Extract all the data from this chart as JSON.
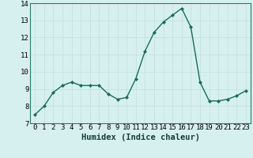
{
  "x": [
    0,
    1,
    2,
    3,
    4,
    5,
    6,
    7,
    8,
    9,
    10,
    11,
    12,
    13,
    14,
    15,
    16,
    17,
    18,
    19,
    20,
    21,
    22,
    23
  ],
  "y": [
    7.5,
    8.0,
    8.8,
    9.2,
    9.4,
    9.2,
    9.2,
    9.2,
    8.7,
    8.4,
    8.5,
    9.6,
    11.2,
    12.3,
    12.9,
    13.3,
    13.7,
    12.6,
    9.4,
    8.3,
    8.3,
    8.4,
    8.6,
    8.9
  ],
  "line_color": "#1a6b5a",
  "marker": "D",
  "marker_size": 2.0,
  "bg_color": "#d6f0f0",
  "grid_major_color": "#c0dede",
  "grid_minor_color": "#c0dede",
  "xlabel": "Humidex (Indice chaleur)",
  "ylim": [
    7,
    14
  ],
  "xlim": [
    -0.5,
    23.5
  ],
  "yticks": [
    7,
    8,
    9,
    10,
    11,
    12,
    13,
    14
  ],
  "xticks": [
    0,
    1,
    2,
    3,
    4,
    5,
    6,
    7,
    8,
    9,
    10,
    11,
    12,
    13,
    14,
    15,
    16,
    17,
    18,
    19,
    20,
    21,
    22,
    23
  ],
  "xlabel_fontsize": 7.5,
  "tick_fontsize": 6.5,
  "linewidth": 1.0
}
